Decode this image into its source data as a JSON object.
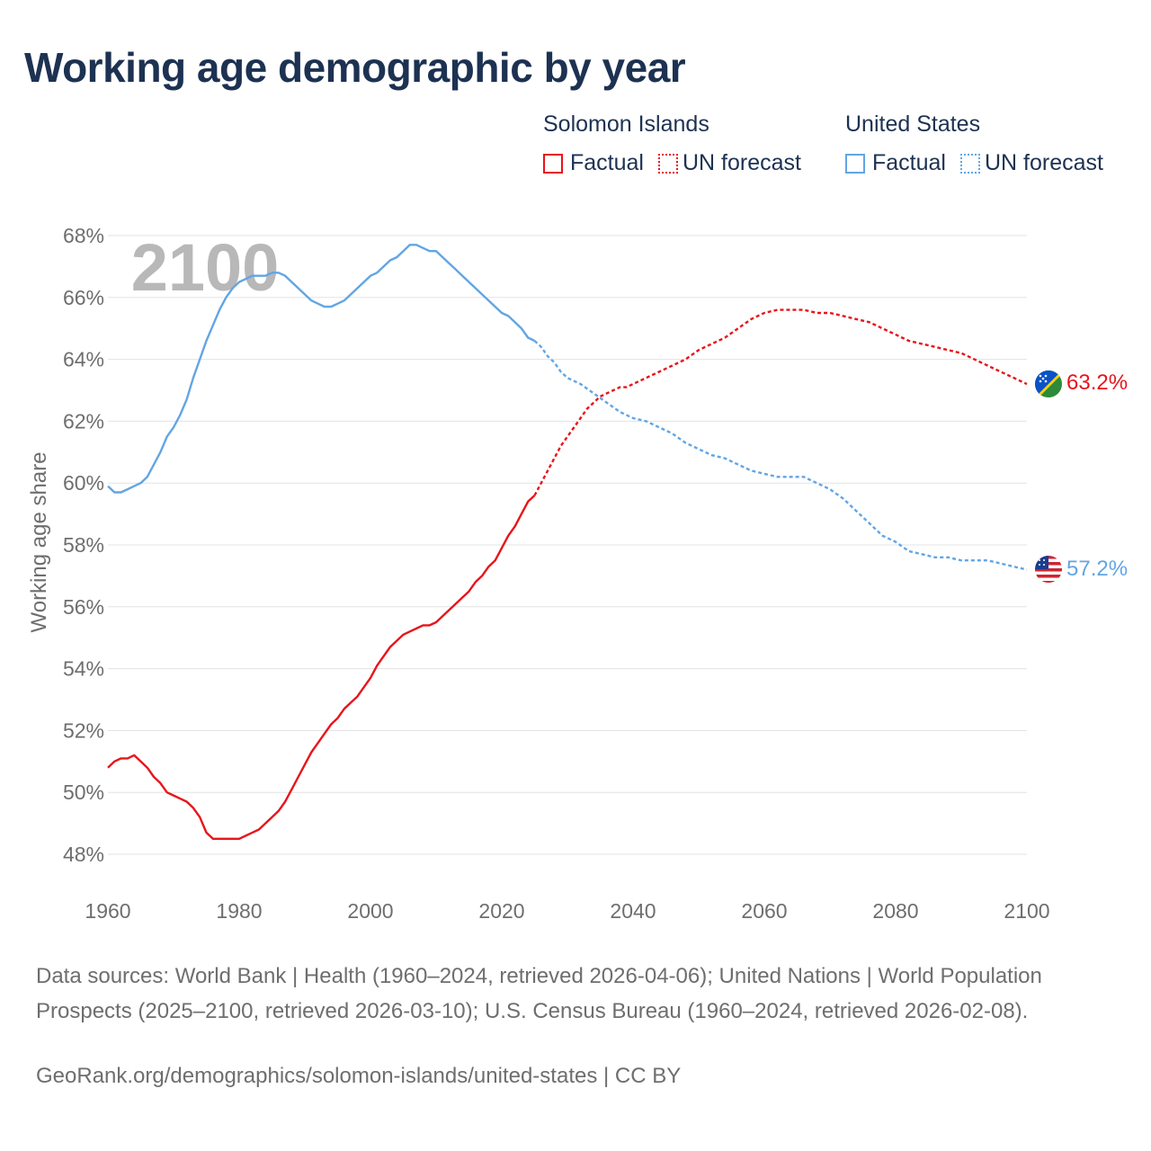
{
  "title": "Working age demographic by year",
  "legend": {
    "groups": [
      {
        "country": "Solomon Islands",
        "color": "#e8141b",
        "items": [
          {
            "label": "Factual",
            "style": "solid"
          },
          {
            "label": "UN forecast",
            "style": "dotted"
          }
        ]
      },
      {
        "country": "United States",
        "color": "#62a5e4",
        "items": [
          {
            "label": "Factual",
            "style": "solid"
          },
          {
            "label": "UN forecast",
            "style": "dotted"
          }
        ]
      }
    ]
  },
  "chart_data": {
    "type": "line",
    "title": "Working age demographic by year",
    "xlabel": "",
    "ylabel": "Working age share",
    "xlim": [
      1960,
      2100
    ],
    "ylim": [
      47.0,
      68.0
    ],
    "x_ticks": [
      "1960",
      "1980",
      "2000",
      "2020",
      "2040",
      "2060",
      "2080",
      "2100"
    ],
    "y_ticks": [
      "48%",
      "50%",
      "52%",
      "54%",
      "56%",
      "58%",
      "60%",
      "62%",
      "64%",
      "66%",
      "68%"
    ],
    "year_watermark": "2100",
    "forecast_start": 2025,
    "series": [
      {
        "name": "Solomon Islands",
        "color": "#e8141b",
        "end_label": "63.2%",
        "flag": "solomon-islands-flag-icon",
        "points": [
          [
            1960,
            50.8
          ],
          [
            1961,
            51.0
          ],
          [
            1962,
            51.1
          ],
          [
            1963,
            51.1
          ],
          [
            1964,
            51.2
          ],
          [
            1965,
            51.0
          ],
          [
            1966,
            50.8
          ],
          [
            1967,
            50.5
          ],
          [
            1968,
            50.3
          ],
          [
            1969,
            50.0
          ],
          [
            1970,
            49.9
          ],
          [
            1971,
            49.8
          ],
          [
            1972,
            49.7
          ],
          [
            1973,
            49.5
          ],
          [
            1974,
            49.2
          ],
          [
            1975,
            48.7
          ],
          [
            1976,
            48.5
          ],
          [
            1977,
            48.5
          ],
          [
            1978,
            48.5
          ],
          [
            1979,
            48.5
          ],
          [
            1980,
            48.5
          ],
          [
            1981,
            48.6
          ],
          [
            1982,
            48.7
          ],
          [
            1983,
            48.8
          ],
          [
            1984,
            49.0
          ],
          [
            1985,
            49.2
          ],
          [
            1986,
            49.4
          ],
          [
            1987,
            49.7
          ],
          [
            1988,
            50.1
          ],
          [
            1989,
            50.5
          ],
          [
            1990,
            50.9
          ],
          [
            1991,
            51.3
          ],
          [
            1992,
            51.6
          ],
          [
            1993,
            51.9
          ],
          [
            1994,
            52.2
          ],
          [
            1995,
            52.4
          ],
          [
            1996,
            52.7
          ],
          [
            1997,
            52.9
          ],
          [
            1998,
            53.1
          ],
          [
            1999,
            53.4
          ],
          [
            2000,
            53.7
          ],
          [
            2001,
            54.1
          ],
          [
            2002,
            54.4
          ],
          [
            2003,
            54.7
          ],
          [
            2004,
            54.9
          ],
          [
            2005,
            55.1
          ],
          [
            2006,
            55.2
          ],
          [
            2007,
            55.3
          ],
          [
            2008,
            55.4
          ],
          [
            2009,
            55.4
          ],
          [
            2010,
            55.5
          ],
          [
            2011,
            55.7
          ],
          [
            2012,
            55.9
          ],
          [
            2013,
            56.1
          ],
          [
            2014,
            56.3
          ],
          [
            2015,
            56.5
          ],
          [
            2016,
            56.8
          ],
          [
            2017,
            57.0
          ],
          [
            2018,
            57.3
          ],
          [
            2019,
            57.5
          ],
          [
            2020,
            57.9
          ],
          [
            2021,
            58.3
          ],
          [
            2022,
            58.6
          ],
          [
            2023,
            59.0
          ],
          [
            2024,
            59.4
          ],
          [
            2025,
            59.6
          ],
          [
            2026,
            60.0
          ],
          [
            2027,
            60.4
          ],
          [
            2028,
            60.8
          ],
          [
            2029,
            61.2
          ],
          [
            2030,
            61.5
          ],
          [
            2031,
            61.8
          ],
          [
            2032,
            62.1
          ],
          [
            2033,
            62.4
          ],
          [
            2034,
            62.6
          ],
          [
            2035,
            62.8
          ],
          [
            2036,
            62.9
          ],
          [
            2037,
            63.0
          ],
          [
            2038,
            63.1
          ],
          [
            2039,
            63.1
          ],
          [
            2040,
            63.2
          ],
          [
            2042,
            63.4
          ],
          [
            2044,
            63.6
          ],
          [
            2046,
            63.8
          ],
          [
            2048,
            64.0
          ],
          [
            2050,
            64.3
          ],
          [
            2052,
            64.5
          ],
          [
            2054,
            64.7
          ],
          [
            2056,
            65.0
          ],
          [
            2058,
            65.3
          ],
          [
            2060,
            65.5
          ],
          [
            2062,
            65.6
          ],
          [
            2064,
            65.6
          ],
          [
            2066,
            65.6
          ],
          [
            2068,
            65.5
          ],
          [
            2070,
            65.5
          ],
          [
            2072,
            65.4
          ],
          [
            2074,
            65.3
          ],
          [
            2076,
            65.2
          ],
          [
            2078,
            65.0
          ],
          [
            2080,
            64.8
          ],
          [
            2082,
            64.6
          ],
          [
            2084,
            64.5
          ],
          [
            2086,
            64.4
          ],
          [
            2088,
            64.3
          ],
          [
            2090,
            64.2
          ],
          [
            2092,
            64.0
          ],
          [
            2094,
            63.8
          ],
          [
            2096,
            63.6
          ],
          [
            2098,
            63.4
          ],
          [
            2100,
            63.2
          ]
        ]
      },
      {
        "name": "United States",
        "color": "#62a5e4",
        "end_label": "57.2%",
        "flag": "united-states-flag-icon",
        "points": [
          [
            1960,
            59.9
          ],
          [
            1961,
            59.7
          ],
          [
            1962,
            59.7
          ],
          [
            1963,
            59.8
          ],
          [
            1964,
            59.9
          ],
          [
            1965,
            60.0
          ],
          [
            1966,
            60.2
          ],
          [
            1967,
            60.6
          ],
          [
            1968,
            61.0
          ],
          [
            1969,
            61.5
          ],
          [
            1970,
            61.8
          ],
          [
            1971,
            62.2
          ],
          [
            1972,
            62.7
          ],
          [
            1973,
            63.4
          ],
          [
            1974,
            64.0
          ],
          [
            1975,
            64.6
          ],
          [
            1976,
            65.1
          ],
          [
            1977,
            65.6
          ],
          [
            1978,
            66.0
          ],
          [
            1979,
            66.3
          ],
          [
            1980,
            66.5
          ],
          [
            1981,
            66.6
          ],
          [
            1982,
            66.7
          ],
          [
            1983,
            66.7
          ],
          [
            1984,
            66.7
          ],
          [
            1985,
            66.8
          ],
          [
            1986,
            66.8
          ],
          [
            1987,
            66.7
          ],
          [
            1988,
            66.5
          ],
          [
            1989,
            66.3
          ],
          [
            1990,
            66.1
          ],
          [
            1991,
            65.9
          ],
          [
            1992,
            65.8
          ],
          [
            1993,
            65.7
          ],
          [
            1994,
            65.7
          ],
          [
            1995,
            65.8
          ],
          [
            1996,
            65.9
          ],
          [
            1997,
            66.1
          ],
          [
            1998,
            66.3
          ],
          [
            1999,
            66.5
          ],
          [
            2000,
            66.7
          ],
          [
            2001,
            66.8
          ],
          [
            2002,
            67.0
          ],
          [
            2003,
            67.2
          ],
          [
            2004,
            67.3
          ],
          [
            2005,
            67.5
          ],
          [
            2006,
            67.7
          ],
          [
            2007,
            67.7
          ],
          [
            2008,
            67.6
          ],
          [
            2009,
            67.5
          ],
          [
            2010,
            67.5
          ],
          [
            2011,
            67.3
          ],
          [
            2012,
            67.1
          ],
          [
            2013,
            66.9
          ],
          [
            2014,
            66.7
          ],
          [
            2015,
            66.5
          ],
          [
            2016,
            66.3
          ],
          [
            2017,
            66.1
          ],
          [
            2018,
            65.9
          ],
          [
            2019,
            65.7
          ],
          [
            2020,
            65.5
          ],
          [
            2021,
            65.4
          ],
          [
            2022,
            65.2
          ],
          [
            2023,
            65.0
          ],
          [
            2024,
            64.7
          ],
          [
            2025,
            64.6
          ],
          [
            2026,
            64.4
          ],
          [
            2027,
            64.1
          ],
          [
            2028,
            63.9
          ],
          [
            2029,
            63.6
          ],
          [
            2030,
            63.4
          ],
          [
            2032,
            63.2
          ],
          [
            2034,
            62.9
          ],
          [
            2036,
            62.6
          ],
          [
            2038,
            62.3
          ],
          [
            2040,
            62.1
          ],
          [
            2042,
            62.0
          ],
          [
            2044,
            61.8
          ],
          [
            2046,
            61.6
          ],
          [
            2048,
            61.3
          ],
          [
            2050,
            61.1
          ],
          [
            2052,
            60.9
          ],
          [
            2054,
            60.8
          ],
          [
            2056,
            60.6
          ],
          [
            2058,
            60.4
          ],
          [
            2060,
            60.3
          ],
          [
            2062,
            60.2
          ],
          [
            2064,
            60.2
          ],
          [
            2066,
            60.2
          ],
          [
            2068,
            60.0
          ],
          [
            2070,
            59.8
          ],
          [
            2072,
            59.5
          ],
          [
            2074,
            59.1
          ],
          [
            2076,
            58.7
          ],
          [
            2078,
            58.3
          ],
          [
            2080,
            58.1
          ],
          [
            2082,
            57.8
          ],
          [
            2084,
            57.7
          ],
          [
            2086,
            57.6
          ],
          [
            2088,
            57.6
          ],
          [
            2090,
            57.5
          ],
          [
            2092,
            57.5
          ],
          [
            2094,
            57.5
          ],
          [
            2096,
            57.4
          ],
          [
            2098,
            57.3
          ],
          [
            2100,
            57.2
          ]
        ]
      }
    ]
  },
  "sources_text": "Data sources: World Bank | Health (1960–2024, retrieved 2026-04-06); United Nations | World Population Prospects (2025–2100, retrieved 2026-03-10); U.S. Census Bureau (1960–2024, retrieved 2026-02-08).",
  "credit_text": "GeoRank.org/demographics/solomon-islands/united-states | CC BY"
}
